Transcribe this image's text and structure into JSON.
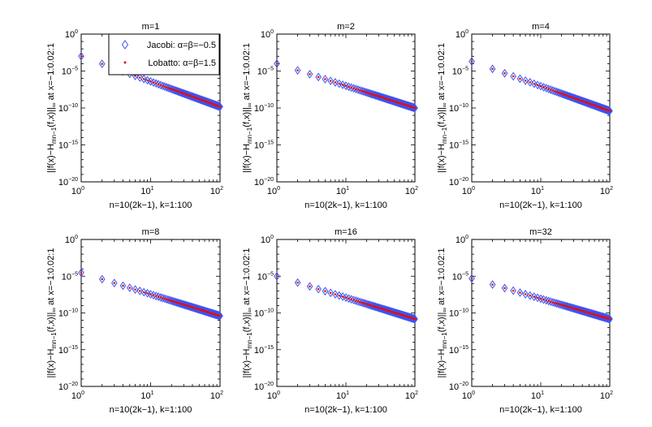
{
  "chart_data": [
    {
      "type": "scatter",
      "title": "m=1",
      "xlabel": "n=10(2k−1), k=1:100",
      "ylabel": "||f(x)−H_mn−1(f,x)||_∞ at x=−1:0.02:1",
      "ylabel_parts": {
        "a": "||f(x)−H",
        "sub": "mn−1",
        "b": "(f,x)||",
        "sub2": "∞",
        "c": " at x=−1:0.02:1"
      },
      "xscale": "log",
      "yscale": "log",
      "xlim": [
        1,
        100
      ],
      "ylim": [
        1e-20,
        1
      ],
      "x_ticks": [
        {
          "base": "10",
          "exp": "0"
        },
        {
          "base": "10",
          "exp": "1"
        },
        {
          "base": "10",
          "exp": "2"
        }
      ],
      "y_ticks": [
        {
          "base": "10",
          "exp": "0"
        },
        {
          "base": "10",
          "exp": "−5"
        },
        {
          "base": "10",
          "exp": "−10"
        },
        {
          "base": "10",
          "exp": "−15"
        },
        {
          "base": "10",
          "exp": "−20"
        }
      ],
      "x": [
        1,
        2,
        3,
        4,
        5,
        6,
        7,
        8,
        9,
        10,
        11,
        12,
        13,
        14,
        15,
        16,
        17,
        18,
        19,
        20,
        21,
        22,
        23,
        24,
        25,
        26,
        27,
        28,
        29,
        30,
        31,
        32,
        33,
        34,
        35,
        36,
        37,
        38,
        39,
        40,
        41,
        42,
        43,
        44,
        45,
        46,
        47,
        48,
        49,
        50,
        51,
        52,
        53,
        54,
        55,
        56,
        57,
        58,
        59,
        60,
        61,
        62,
        63,
        64,
        65,
        66,
        67,
        68,
        69,
        70,
        71,
        72,
        73,
        74,
        75,
        76,
        77,
        78,
        79,
        80,
        81,
        82,
        83,
        84,
        85,
        86,
        87,
        88,
        89,
        90,
        91,
        92,
        93,
        94,
        95,
        96,
        97,
        98,
        99,
        100
      ],
      "y_start": 0.001,
      "y_end": 1.5e-10,
      "series": [
        {
          "name": "Jacobi: α=β=−0.5",
          "marker": "diamond",
          "color": "#3b54f5"
        },
        {
          "name": "Lobatto: α=β=1.5",
          "marker": "dot",
          "color": "#e01010"
        }
      ],
      "legend": "top-right"
    },
    {
      "type": "scatter",
      "title": "m=2",
      "xlabel": "n=10(2k−1), k=1:100",
      "ylabel": "||f(x)−H_mn−1(f,x)||_∞ at x=−1:0.02:1",
      "ylabel_parts": {
        "a": "||f(x)−H",
        "sub": "mn−1",
        "b": "(f,x)||",
        "sub2": "∞",
        "c": " at x=−1:0.02:1"
      },
      "xscale": "log",
      "yscale": "log",
      "xlim": [
        1,
        100
      ],
      "ylim": [
        1e-20,
        1
      ],
      "x_ticks": [
        {
          "base": "10",
          "exp": "0"
        },
        {
          "base": "10",
          "exp": "1"
        },
        {
          "base": "10",
          "exp": "2"
        }
      ],
      "y_ticks": [
        {
          "base": "10",
          "exp": "0"
        },
        {
          "base": "10",
          "exp": "−5"
        },
        {
          "base": "10",
          "exp": "−10"
        },
        {
          "base": "10",
          "exp": "−15"
        },
        {
          "base": "10",
          "exp": "−20"
        }
      ],
      "x": [
        1,
        2,
        3,
        4,
        5,
        6,
        7,
        8,
        9,
        10,
        11,
        12,
        13,
        14,
        15,
        16,
        17,
        18,
        19,
        20,
        21,
        22,
        23,
        24,
        25,
        26,
        27,
        28,
        29,
        30,
        31,
        32,
        33,
        34,
        35,
        36,
        37,
        38,
        39,
        40,
        41,
        42,
        43,
        44,
        45,
        46,
        47,
        48,
        49,
        50,
        51,
        52,
        53,
        54,
        55,
        56,
        57,
        58,
        59,
        60,
        61,
        62,
        63,
        64,
        65,
        66,
        67,
        68,
        69,
        70,
        71,
        72,
        73,
        74,
        75,
        76,
        77,
        78,
        79,
        80,
        81,
        82,
        83,
        84,
        85,
        86,
        87,
        88,
        89,
        90,
        91,
        92,
        93,
        94,
        95,
        96,
        97,
        98,
        99,
        100
      ],
      "y_start": 0.0001,
      "y_end": 1e-10,
      "series": [
        {
          "marker": "diamond",
          "color": "#3b54f5"
        },
        {
          "marker": "dot",
          "color": "#e01010"
        }
      ]
    },
    {
      "type": "scatter",
      "title": "m=4",
      "xlabel": "n=10(2k−1), k=1:100",
      "ylabel": "||f(x)−H_mn−1(f,x)||_∞ at x=−1:0.02:1",
      "ylabel_parts": {
        "a": "||f(x)−H",
        "sub": "mn−1",
        "b": "(f,x)||",
        "sub2": "∞",
        "c": " at x=−1:0.02:1"
      },
      "xscale": "log",
      "yscale": "log",
      "xlim": [
        1,
        100
      ],
      "ylim": [
        1e-20,
        1
      ],
      "x_ticks": [
        {
          "base": "10",
          "exp": "0"
        },
        {
          "base": "10",
          "exp": "1"
        },
        {
          "base": "10",
          "exp": "2"
        }
      ],
      "y_ticks": [
        {
          "base": "10",
          "exp": "0"
        },
        {
          "base": "10",
          "exp": "−5"
        },
        {
          "base": "10",
          "exp": "−10"
        },
        {
          "base": "10",
          "exp": "−15"
        },
        {
          "base": "10",
          "exp": "−20"
        }
      ],
      "x": [
        1,
        2,
        3,
        4,
        5,
        6,
        7,
        8,
        9,
        10,
        11,
        12,
        13,
        14,
        15,
        16,
        17,
        18,
        19,
        20,
        21,
        22,
        23,
        24,
        25,
        26,
        27,
        28,
        29,
        30,
        31,
        32,
        33,
        34,
        35,
        36,
        37,
        38,
        39,
        40,
        41,
        42,
        43,
        44,
        45,
        46,
        47,
        48,
        49,
        50,
        51,
        52,
        53,
        54,
        55,
        56,
        57,
        58,
        59,
        60,
        61,
        62,
        63,
        64,
        65,
        66,
        67,
        68,
        69,
        70,
        71,
        72,
        73,
        74,
        75,
        76,
        77,
        78,
        79,
        80,
        81,
        82,
        83,
        84,
        85,
        86,
        87,
        88,
        89,
        90,
        91,
        92,
        93,
        94,
        95,
        96,
        97,
        98,
        99,
        100
      ],
      "y_start": 0.0002,
      "y_end": 4e-11,
      "series": [
        {
          "marker": "diamond",
          "color": "#3b54f5"
        },
        {
          "marker": "dot",
          "color": "#e01010"
        }
      ]
    },
    {
      "type": "scatter",
      "title": "m=8",
      "xlabel": "n=10(2k−1), k=1:100",
      "ylabel": "||f(x)−H_mn−1(f,x)||_∞ at x=−1:0.02:1",
      "ylabel_parts": {
        "a": "||f(x)−H",
        "sub": "mn−1",
        "b": "(f,x)||",
        "sub2": "∞",
        "c": " at x=−1:0.02:1"
      },
      "xscale": "log",
      "yscale": "log",
      "xlim": [
        1,
        100
      ],
      "ylim": [
        1e-20,
        1
      ],
      "x_ticks": [
        {
          "base": "10",
          "exp": "0"
        },
        {
          "base": "10",
          "exp": "1"
        },
        {
          "base": "10",
          "exp": "2"
        }
      ],
      "y_ticks": [
        {
          "base": "10",
          "exp": "0"
        },
        {
          "base": "10",
          "exp": "−5"
        },
        {
          "base": "10",
          "exp": "−10"
        },
        {
          "base": "10",
          "exp": "−15"
        },
        {
          "base": "10",
          "exp": "−20"
        }
      ],
      "x": [
        1,
        2,
        3,
        4,
        5,
        6,
        7,
        8,
        9,
        10,
        11,
        12,
        13,
        14,
        15,
        16,
        17,
        18,
        19,
        20,
        21,
        22,
        23,
        24,
        25,
        26,
        27,
        28,
        29,
        30,
        31,
        32,
        33,
        34,
        35,
        36,
        37,
        38,
        39,
        40,
        41,
        42,
        43,
        44,
        45,
        46,
        47,
        48,
        49,
        50,
        51,
        52,
        53,
        54,
        55,
        56,
        57,
        58,
        59,
        60,
        61,
        62,
        63,
        64,
        65,
        66,
        67,
        68,
        69,
        70,
        71,
        72,
        73,
        74,
        75,
        76,
        77,
        78,
        79,
        80,
        81,
        82,
        83,
        84,
        85,
        86,
        87,
        88,
        89,
        90,
        91,
        92,
        93,
        94,
        95,
        96,
        97,
        98,
        99,
        100
      ],
      "y_start": 3e-05,
      "y_end": 4e-11,
      "series": [
        {
          "marker": "diamond",
          "color": "#3b54f5"
        },
        {
          "marker": "dot",
          "color": "#e01010"
        }
      ]
    },
    {
      "type": "scatter",
      "title": "m=16",
      "xlabel": "n=10(2k−1), k=1:100",
      "ylabel": "||f(x)−H_mn−1(f,x)||_∞ at x=−1:0.02:1",
      "ylabel_parts": {
        "a": "||f(x)−H",
        "sub": "mn−1",
        "b": "(f,x)||",
        "sub2": "∞",
        "c": " at x=−1:0.02:1"
      },
      "xscale": "log",
      "yscale": "log",
      "xlim": [
        1,
        100
      ],
      "ylim": [
        1e-20,
        1
      ],
      "x_ticks": [
        {
          "base": "10",
          "exp": "0"
        },
        {
          "base": "10",
          "exp": "1"
        },
        {
          "base": "10",
          "exp": "2"
        }
      ],
      "y_ticks": [
        {
          "base": "10",
          "exp": "0"
        },
        {
          "base": "10",
          "exp": "−5"
        },
        {
          "base": "10",
          "exp": "−10"
        },
        {
          "base": "10",
          "exp": "−15"
        },
        {
          "base": "10",
          "exp": "−20"
        }
      ],
      "x": [
        1,
        2,
        3,
        4,
        5,
        6,
        7,
        8,
        9,
        10,
        11,
        12,
        13,
        14,
        15,
        16,
        17,
        18,
        19,
        20,
        21,
        22,
        23,
        24,
        25,
        26,
        27,
        28,
        29,
        30,
        31,
        32,
        33,
        34,
        35,
        36,
        37,
        38,
        39,
        40,
        41,
        42,
        43,
        44,
        45,
        46,
        47,
        48,
        49,
        50,
        51,
        52,
        53,
        54,
        55,
        56,
        57,
        58,
        59,
        60,
        61,
        62,
        63,
        64,
        65,
        66,
        67,
        68,
        69,
        70,
        71,
        72,
        73,
        74,
        75,
        76,
        77,
        78,
        79,
        80,
        81,
        82,
        83,
        84,
        85,
        86,
        87,
        88,
        89,
        90,
        91,
        92,
        93,
        94,
        95,
        96,
        97,
        98,
        99,
        100
      ],
      "y_start": 1e-05,
      "y_end": 1.5e-11,
      "series": [
        {
          "marker": "diamond",
          "color": "#3b54f5"
        },
        {
          "marker": "dot",
          "color": "#e01010"
        }
      ]
    },
    {
      "type": "scatter",
      "title": "m=32",
      "xlabel": "n=10(2k−1), k=1:100",
      "ylabel": "||f(x)−H_mn−1(f,x)||_∞ at x=−1:0.02:1",
      "ylabel_parts": {
        "a": "||f(x)−H",
        "sub": "mn−1",
        "b": "(f,x)||",
        "sub2": "∞",
        "c": " at x=−1:0.02:1"
      },
      "xscale": "log",
      "yscale": "log",
      "xlim": [
        1,
        100
      ],
      "ylim": [
        1e-20,
        1
      ],
      "x_ticks": [
        {
          "base": "10",
          "exp": "0"
        },
        {
          "base": "10",
          "exp": "1"
        },
        {
          "base": "10",
          "exp": "2"
        }
      ],
      "y_ticks": [
        {
          "base": "10",
          "exp": "0"
        },
        {
          "base": "10",
          "exp": "−5"
        },
        {
          "base": "10",
          "exp": "−10"
        },
        {
          "base": "10",
          "exp": "−15"
        },
        {
          "base": "10",
          "exp": "−20"
        }
      ],
      "x": [
        1,
        2,
        3,
        4,
        5,
        6,
        7,
        8,
        9,
        10,
        11,
        12,
        13,
        14,
        15,
        16,
        17,
        18,
        19,
        20,
        21,
        22,
        23,
        24,
        25,
        26,
        27,
        28,
        29,
        30,
        31,
        32,
        33,
        34,
        35,
        36,
        37,
        38,
        39,
        40,
        41,
        42,
        43,
        44,
        45,
        46,
        47,
        48,
        49,
        50,
        51,
        52,
        53,
        54,
        55,
        56,
        57,
        58,
        59,
        60,
        61,
        62,
        63,
        64,
        65,
        66,
        67,
        68,
        69,
        70,
        71,
        72,
        73,
        74,
        75,
        76,
        77,
        78,
        79,
        80,
        81,
        82,
        83,
        84,
        85,
        86,
        87,
        88,
        89,
        90,
        91,
        92,
        93,
        94,
        95,
        96,
        97,
        98,
        99,
        100
      ],
      "y_start": 5e-06,
      "y_end": 1.5e-11,
      "series": [
        {
          "marker": "diamond",
          "color": "#3b54f5"
        },
        {
          "marker": "dot",
          "color": "#e01010"
        }
      ]
    }
  ]
}
